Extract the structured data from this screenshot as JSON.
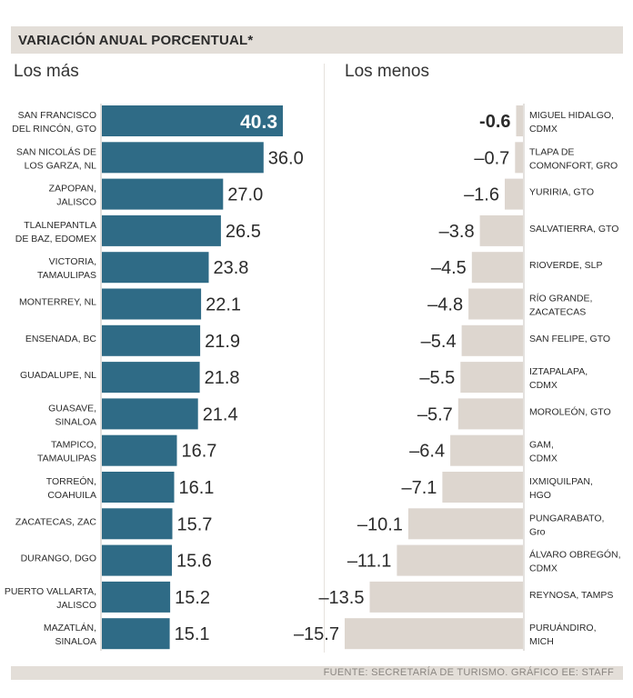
{
  "header": {
    "title": "VARIACIÓN ANUAL PORCENTUAL*"
  },
  "footer": {
    "source": "FUENTE: SECRETARÍA DE TURISMO.  GRÁFICO EE: STAFF"
  },
  "colors": {
    "top_bar": "#2f6b86",
    "bottom_bar": "#ddd6cf",
    "band": "#e3ded8"
  },
  "chart_data": [
    {
      "type": "bar",
      "title": "Los más",
      "categories": [
        [
          "SAN FRANCISCO",
          "DEL RINCÓN, GTO"
        ],
        [
          "SAN NICOLÁS DE",
          "LOS GARZA, NL"
        ],
        [
          "ZAPOPAN,",
          "JALISCO"
        ],
        [
          "TLALNEPANTLA",
          "DE BAZ, EDOMEX"
        ],
        [
          "VICTORIA,",
          "TAMAULIPAS"
        ],
        [
          "MONTERREY, NL"
        ],
        [
          "ENSENADA, BC"
        ],
        [
          "GUADALUPE, NL"
        ],
        [
          "GUASAVE,",
          "SINALOA"
        ],
        [
          "TAMPICO,",
          "TAMAULIPAS"
        ],
        [
          "TORREÓN,",
          "COAHUILA"
        ],
        [
          "ZACATECAS, ZAC"
        ],
        [
          "DURANGO, DGO"
        ],
        [
          "PUERTO VALLARTA,",
          "JALISCO"
        ],
        [
          "MAZATLÁN,",
          "SINALOA"
        ]
      ],
      "value_labels": [
        "40.3",
        "36.0",
        "27.0",
        "26.5",
        "23.8",
        "22.1",
        "21.9",
        "21.8",
        "21.4",
        "16.7",
        "16.1",
        "15.7",
        "15.6",
        "15.2",
        "15.1"
      ],
      "values": [
        40.3,
        36.0,
        27.0,
        26.5,
        23.8,
        22.1,
        21.9,
        21.8,
        21.4,
        16.7,
        16.1,
        15.7,
        15.6,
        15.2,
        15.1
      ],
      "xlim": [
        0,
        40.3
      ]
    },
    {
      "type": "bar",
      "title": "Los menos",
      "categories": [
        [
          "MIGUEL HIDALGO,",
          "CDMX"
        ],
        [
          "TLAPA DE",
          "COMONFORT, GRO"
        ],
        [
          "YURIRIA, GTO"
        ],
        [
          "SALVATIERRA, GTO"
        ],
        [
          "RIOVERDE, SLP"
        ],
        [
          "RÍO GRANDE,",
          "ZACATECAS"
        ],
        [
          "SAN FELIPE, GTO"
        ],
        [
          "IZTAPALAPA,",
          "CDMX"
        ],
        [
          "MOROLEÓN, GTO"
        ],
        [
          "GAM,",
          "CDMX"
        ],
        [
          "IXMIQUILPAN,",
          "HGO"
        ],
        [
          "PUNGARABATO,",
          "Gro"
        ],
        [
          "ÁLVARO OBREGÓN,",
          "CDMX"
        ],
        [
          "REYNOSA, TAMPS"
        ],
        [
          "PURUÁNDIRO,",
          "MICH"
        ]
      ],
      "value_labels": [
        "-0.6",
        "–0.7",
        "–1.6",
        "–3.8",
        "–4.5",
        "–4.8",
        "–5.4",
        "–5.5",
        "–5.7",
        "–6.4",
        "–7.1",
        "–10.1",
        "–11.1",
        "–13.5",
        "–15.7"
      ],
      "values": [
        -0.6,
        -0.7,
        -1.6,
        -3.8,
        -4.5,
        -4.8,
        -5.4,
        -5.5,
        -5.7,
        -6.4,
        -7.1,
        -10.1,
        -11.1,
        -13.5,
        -15.7
      ],
      "xlim": [
        -15.7,
        0
      ]
    }
  ]
}
